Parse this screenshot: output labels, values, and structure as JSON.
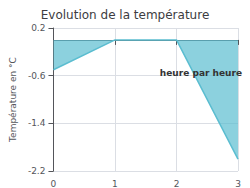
{
  "chart_data": {
    "type": "area",
    "title": "Evolution de la température",
    "ylabel": "Température en °C",
    "annotations": [
      "heure par heure"
    ],
    "x": [
      0,
      1,
      2,
      3
    ],
    "values": [
      -0.5,
      0.0,
      0.0,
      -2.0
    ],
    "color": "#5bbdd0",
    "xlim": [
      0,
      3
    ],
    "xticks": [
      0,
      1,
      2,
      3
    ],
    "ylim": [
      -2.2,
      0.2
    ],
    "yticks": [
      0.2,
      -0.6,
      -1.4,
      -2.2
    ],
    "grid": true
  }
}
